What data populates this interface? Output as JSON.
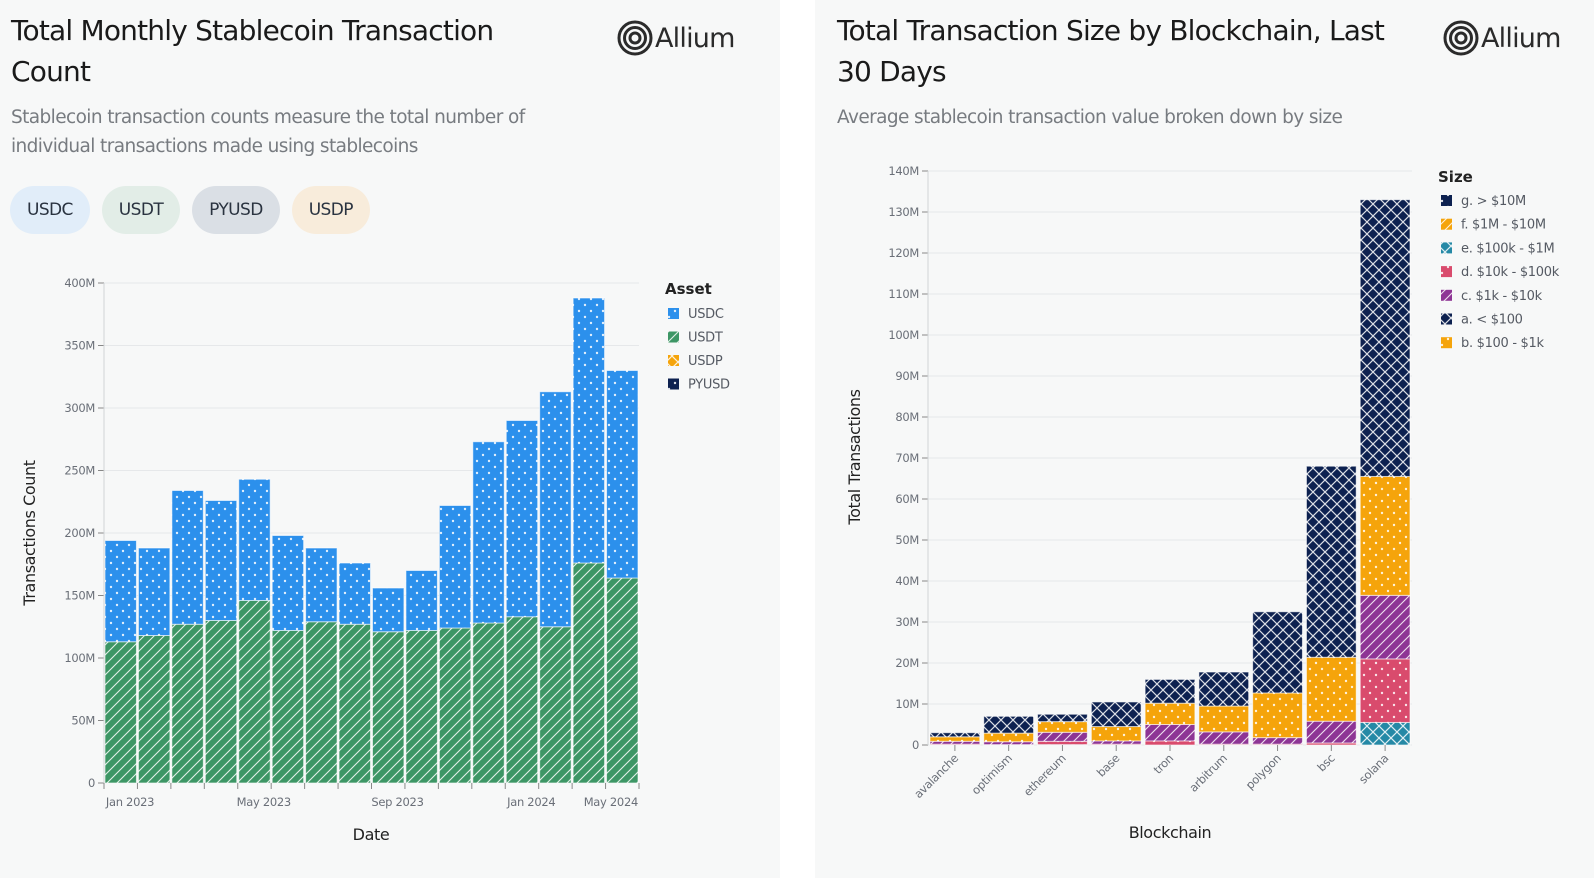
{
  "left_panel": {
    "title_line1": "Total Monthly Stablecoin Transaction",
    "title_line2": "Count",
    "subtitle_line1": "Stablecoin transaction counts measure the total number of",
    "subtitle_line2": "individual transactions made using stablecoins",
    "logo_text": "Allium",
    "logo_icon": "concentric-circles-icon",
    "filter_chips": [
      {
        "label": "USDC",
        "color": "#e1edf9"
      },
      {
        "label": "USDT",
        "color": "#e2ede7"
      },
      {
        "label": "PYUSD",
        "color": "#dadfe5"
      },
      {
        "label": "USDP",
        "color": "#f8ecdb"
      }
    ]
  },
  "right_panel": {
    "title_line1": "Total Transaction Size by Blockchain, Last",
    "title_line2": "30 Days",
    "subtitle": "Average stablecoin transaction value broken down by size",
    "logo_text": "Allium",
    "logo_icon": "concentric-circles-icon"
  },
  "chart_data": [
    {
      "type": "bar",
      "stacked": true,
      "title": "Total Monthly Stablecoin Transaction Count",
      "xlabel": "Date",
      "ylabel": "Transactions Count",
      "ylim": [
        0,
        400000000
      ],
      "yticks": [
        0,
        50000000,
        100000000,
        150000000,
        200000000,
        250000000,
        300000000,
        350000000,
        400000000
      ],
      "ytick_labels": [
        "0",
        "50M",
        "100M",
        "150M",
        "200M",
        "250M",
        "300M",
        "350M",
        "400M"
      ],
      "grid": true,
      "categories": [
        "2023-01",
        "2023-02",
        "2023-03",
        "2023-04",
        "2023-05",
        "2023-06",
        "2023-07",
        "2023-08",
        "2023-09",
        "2023-10",
        "2023-11",
        "2023-12",
        "2024-01",
        "2024-02",
        "2024-03",
        "2024-04"
      ],
      "xtick_labels": [
        {
          "index": 0,
          "label": "Jan 2023"
        },
        {
          "index": 4,
          "label": "May 2023"
        },
        {
          "index": 8,
          "label": "Sep 2023"
        },
        {
          "index": 12,
          "label": "Jan 2024"
        },
        {
          "index": 16,
          "label": "May 2024"
        }
      ],
      "legend_title": "Asset",
      "legend_position": "right",
      "series": [
        {
          "name": "USDT",
          "color": "#3d9665",
          "pattern": "diagonal",
          "values": [
            113000000,
            118000000,
            127000000,
            130000000,
            146000000,
            122000000,
            129000000,
            127000000,
            121000000,
            122000000,
            124000000,
            128000000,
            133000000,
            125000000,
            176000000,
            164000000
          ]
        },
        {
          "name": "USDC",
          "color": "#2c90ec",
          "pattern": "dots",
          "values": [
            81000000,
            70000000,
            107000000,
            96000000,
            97000000,
            76000000,
            59000000,
            49000000,
            35000000,
            48000000,
            98000000,
            145000000,
            157000000,
            188000000,
            212000000,
            166000000
          ]
        },
        {
          "name": "USDP",
          "color": "#f5a40b",
          "pattern": "cross",
          "values": [
            0,
            0,
            0,
            0,
            0,
            0,
            0,
            0,
            0,
            0,
            0,
            0,
            0,
            0,
            0,
            0
          ]
        },
        {
          "name": "PYUSD",
          "color": "#0d2150",
          "pattern": "dots",
          "values": [
            0,
            0,
            0,
            0,
            0,
            0,
            0,
            0,
            0,
            0,
            0,
            0,
            0,
            0,
            0,
            0
          ]
        }
      ],
      "legend_order": [
        "USDC",
        "USDT",
        "USDP",
        "PYUSD"
      ]
    },
    {
      "type": "bar",
      "stacked": true,
      "title": "Total Transaction Size by Blockchain, Last 30 Days",
      "xlabel": "Blockchain",
      "ylabel": "Total Transactions",
      "ylim": [
        0,
        140000000
      ],
      "yticks": [
        0,
        10000000,
        20000000,
        30000000,
        40000000,
        50000000,
        60000000,
        70000000,
        80000000,
        90000000,
        100000000,
        110000000,
        120000000,
        130000000,
        140000000
      ],
      "ytick_labels": [
        "0",
        "10M",
        "20M",
        "30M",
        "40M",
        "50M",
        "60M",
        "70M",
        "80M",
        "90M",
        "100M",
        "110M",
        "120M",
        "130M",
        "140M"
      ],
      "grid": true,
      "categories": [
        "avalanche",
        "optimism",
        "ethereum",
        "base",
        "tron",
        "arbitrum",
        "polygon",
        "bsc",
        "solana"
      ],
      "legend_title": "Size",
      "legend_position": "right",
      "series": [
        {
          "name": "e. $100k - $1M",
          "color": "#2589a6",
          "pattern": "cross",
          "values": [
            0,
            0,
            0.1,
            0,
            0,
            0,
            0,
            0,
            5.5
          ]
        },
        {
          "name": "d. $10k - $100k",
          "color": "#d94b6d",
          "pattern": "dots",
          "values": [
            0.2,
            0.1,
            0.8,
            0.2,
            1.0,
            0.2,
            0.2,
            0.5,
            15.5
          ]
        },
        {
          "name": "c. $1k - $10k",
          "color": "#8e3595",
          "pattern": "diagonal",
          "values": [
            0.7,
            0.7,
            2.2,
            0.8,
            4.0,
            3.0,
            1.6,
            5.3,
            15.5
          ]
        },
        {
          "name": "b. $100 - $1k",
          "color": "#f5a40b",
          "pattern": "dots",
          "values": [
            1.1,
            2.1,
            2.6,
            3.5,
            5.2,
            6.3,
            10.9,
            15.6,
            29.0
          ]
        },
        {
          "name": "a. < $100",
          "color": "#0d2150",
          "pattern": "cross",
          "values": [
            1.0,
            4.1,
            1.8,
            6.0,
            5.8,
            8.3,
            19.8,
            46.6,
            67.5
          ]
        },
        {
          "name": "f. $1M - $10M",
          "color": "#f5a40b",
          "pattern": "diagonal",
          "values": [
            0,
            0,
            0,
            0,
            0,
            0,
            0,
            0,
            0
          ]
        },
        {
          "name": "g. > $10M",
          "color": "#0d2150",
          "pattern": "dots",
          "values": [
            0,
            0,
            0,
            0,
            0,
            0,
            0,
            0,
            0
          ]
        }
      ],
      "value_unit": "millions",
      "legend_order": [
        "g. > $10M",
        "f. $1M - $10M",
        "e. $100k - $1M",
        "d. $10k - $100k",
        "c. $1k - $10k",
        "a. < $100",
        "b. $100 - $1k"
      ]
    }
  ]
}
